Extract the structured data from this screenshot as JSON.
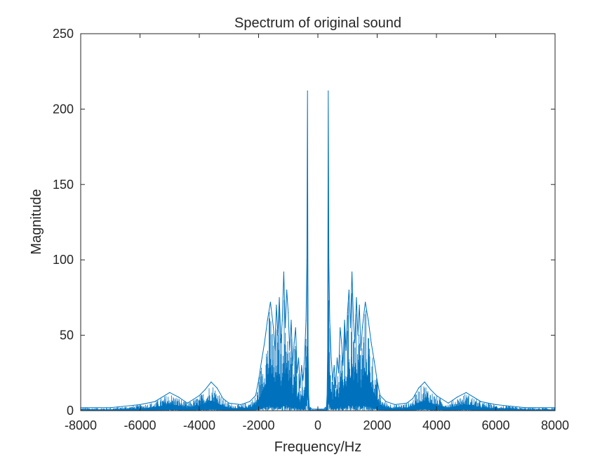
{
  "chart_data": {
    "type": "line",
    "title": "Spectrum of original sound",
    "xlabel": "Frequency/Hz",
    "ylabel": "Magnitude",
    "xlim": [
      -8000,
      8000
    ],
    "ylim": [
      0,
      250
    ],
    "xticks": [
      -8000,
      -6000,
      -4000,
      -2000,
      0,
      2000,
      4000,
      6000,
      8000
    ],
    "yticks": [
      0,
      50,
      100,
      150,
      200,
      250
    ],
    "grid": false,
    "legend": "none",
    "series_color": "#0072BD",
    "series": [
      {
        "x": [
          -8000,
          -7000,
          -6500,
          -6000,
          -5500,
          -5000,
          -4700,
          -4400,
          -4000,
          -3800,
          -3600,
          -3400,
          -3200,
          -3000,
          -2600,
          -2300,
          -2100,
          -2000,
          -1900,
          -1800,
          -1700,
          -1600,
          -1500,
          -1450,
          -1400,
          -1350,
          -1300,
          -1250,
          -1200,
          -1150,
          -1100,
          -1050,
          -1000,
          -950,
          -900,
          -850,
          -800,
          -750,
          -700,
          -650,
          -600,
          -550,
          -500,
          -450,
          -400,
          -370,
          -350,
          -330,
          -310,
          -290,
          -270,
          -250,
          -200,
          -150,
          -100,
          -50,
          0,
          50,
          100,
          150,
          200,
          250,
          270,
          290,
          310,
          330,
          350,
          370,
          400,
          450,
          500,
          550,
          600,
          650,
          700,
          750,
          800,
          850,
          900,
          950,
          1000,
          1050,
          1100,
          1150,
          1200,
          1250,
          1300,
          1350,
          1400,
          1450,
          1500,
          1600,
          1700,
          1800,
          1900,
          2000,
          2100,
          2300,
          2600,
          3000,
          3200,
          3400,
          3600,
          3800,
          4000,
          4400,
          4700,
          5000,
          5500,
          6000,
          6500,
          7000,
          8000
        ],
        "y": [
          2,
          2,
          3,
          4,
          6,
          12,
          9,
          5,
          10,
          14,
          19,
          15,
          8,
          5,
          4,
          6,
          10,
          20,
          33,
          45,
          60,
          72,
          55,
          40,
          70,
          50,
          75,
          45,
          60,
          92,
          55,
          80,
          65,
          40,
          60,
          30,
          45,
          55,
          25,
          35,
          15,
          30,
          20,
          35,
          60,
          100,
          212,
          40,
          10,
          3,
          1,
          2,
          1,
          1,
          1,
          1,
          1,
          1,
          1,
          1,
          1,
          2,
          1,
          3,
          10,
          40,
          212,
          100,
          60,
          35,
          20,
          30,
          15,
          35,
          25,
          55,
          45,
          30,
          60,
          40,
          65,
          80,
          55,
          92,
          60,
          45,
          75,
          50,
          70,
          40,
          55,
          72,
          60,
          45,
          33,
          20,
          10,
          6,
          4,
          5,
          8,
          15,
          19,
          14,
          10,
          5,
          9,
          12,
          6,
          4,
          3,
          2,
          2
        ]
      }
    ]
  }
}
